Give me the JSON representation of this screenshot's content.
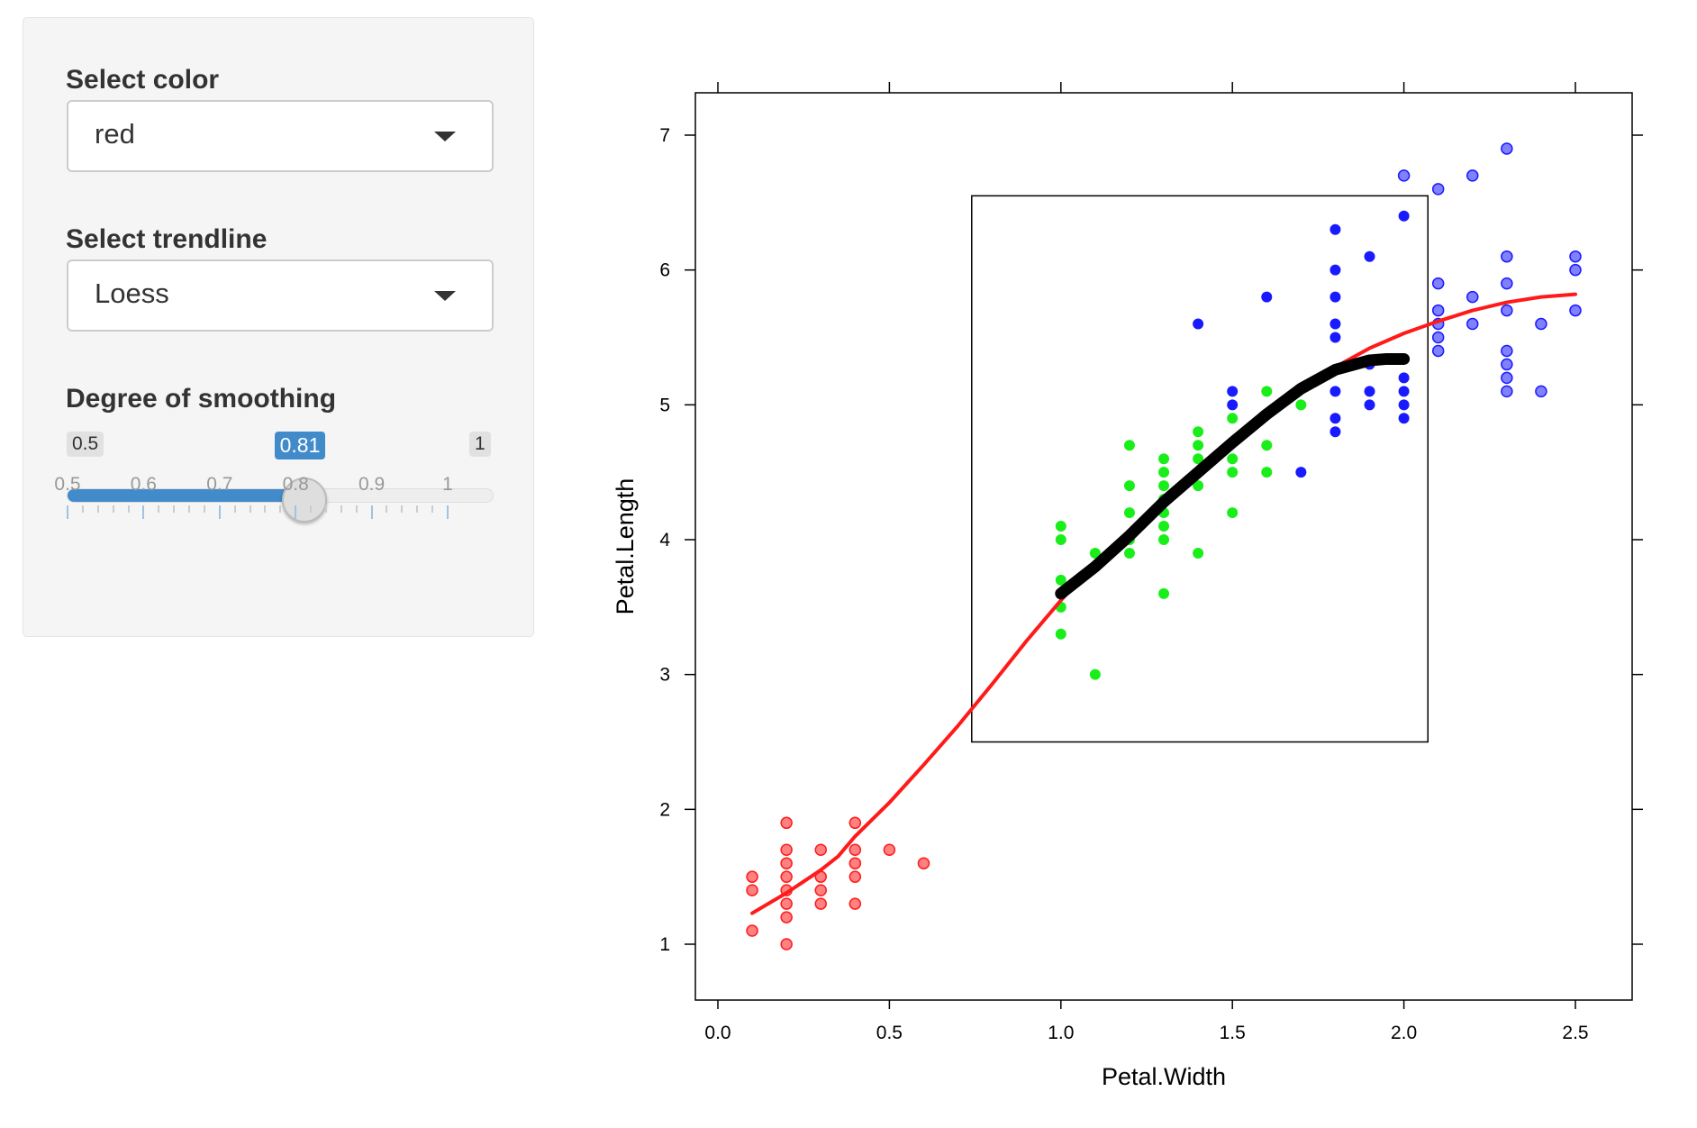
{
  "sidebar": {
    "color_label": "Select color",
    "color_value": "red",
    "trendline_label": "Select trendline",
    "trendline_value": "Loess",
    "smoothing_label": "Degree of smoothing",
    "smoothing": {
      "min": 0.5,
      "max": 1,
      "value": 0.81,
      "min_label": "0.5",
      "max_label": "1",
      "value_label": "0.81",
      "tick_labels": [
        "0.5",
        "0.6",
        "0.7",
        "0.8",
        "0.9",
        "1"
      ],
      "accent": "#428bca"
    }
  },
  "chart_data": {
    "type": "scatter",
    "xlabel": "Petal.Width",
    "ylabel": "Petal.Length",
    "xlim": [
      -0.07,
      2.66
    ],
    "ylim": [
      0.6,
      7.3
    ],
    "xticks": [
      "0.0",
      "0.5",
      "1.0",
      "1.5",
      "2.0",
      "2.5"
    ],
    "yticks": [
      "1",
      "2",
      "3",
      "4",
      "5",
      "6",
      "7"
    ],
    "grid": false,
    "selection_box": {
      "x": [
        0.74,
        2.07
      ],
      "y": [
        2.5,
        6.55
      ]
    },
    "series": [
      {
        "color": "#ff1a1a",
        "points": [
          [
            0.1,
            1.5
          ],
          [
            0.1,
            1.4
          ],
          [
            0.1,
            1.1
          ],
          [
            0.2,
            1.9
          ],
          [
            0.2,
            1.7
          ],
          [
            0.2,
            1.6
          ],
          [
            0.2,
            1.5
          ],
          [
            0.2,
            1.4
          ],
          [
            0.2,
            1.3
          ],
          [
            0.2,
            1.2
          ],
          [
            0.2,
            1.0
          ],
          [
            0.3,
            1.7
          ],
          [
            0.3,
            1.5
          ],
          [
            0.3,
            1.4
          ],
          [
            0.3,
            1.3
          ],
          [
            0.4,
            1.9
          ],
          [
            0.4,
            1.7
          ],
          [
            0.4,
            1.6
          ],
          [
            0.4,
            1.5
          ],
          [
            0.4,
            1.3
          ],
          [
            0.5,
            1.7
          ],
          [
            0.6,
            1.6
          ]
        ]
      },
      {
        "color": "#1aee1a",
        "points": [
          [
            1.0,
            4.1
          ],
          [
            1.0,
            4.0
          ],
          [
            1.0,
            3.7
          ],
          [
            1.0,
            3.5
          ],
          [
            1.0,
            3.3
          ],
          [
            1.1,
            3.9
          ],
          [
            1.1,
            3.8
          ],
          [
            1.1,
            3.0
          ],
          [
            1.2,
            4.7
          ],
          [
            1.2,
            4.4
          ],
          [
            1.2,
            4.2
          ],
          [
            1.2,
            4.0
          ],
          [
            1.2,
            3.9
          ],
          [
            1.3,
            4.6
          ],
          [
            1.3,
            4.5
          ],
          [
            1.3,
            4.4
          ],
          [
            1.3,
            4.3
          ],
          [
            1.3,
            4.2
          ],
          [
            1.3,
            4.1
          ],
          [
            1.3,
            4.0
          ],
          [
            1.3,
            3.6
          ],
          [
            1.4,
            4.8
          ],
          [
            1.4,
            4.7
          ],
          [
            1.4,
            4.6
          ],
          [
            1.4,
            4.4
          ],
          [
            1.4,
            3.9
          ],
          [
            1.5,
            4.9
          ],
          [
            1.5,
            4.6
          ],
          [
            1.5,
            4.5
          ],
          [
            1.5,
            4.2
          ],
          [
            1.6,
            5.1
          ],
          [
            1.6,
            4.7
          ],
          [
            1.6,
            4.5
          ],
          [
            1.7,
            5.0
          ]
        ]
      },
      {
        "color": "#1a1aff",
        "points": [
          [
            1.4,
            5.6
          ],
          [
            1.5,
            5.1
          ],
          [
            1.5,
            5.0
          ],
          [
            1.6,
            5.8
          ],
          [
            1.7,
            4.5
          ],
          [
            1.8,
            6.3
          ],
          [
            1.8,
            6.0
          ],
          [
            1.8,
            5.8
          ],
          [
            1.8,
            5.6
          ],
          [
            1.8,
            5.5
          ],
          [
            1.8,
            5.1
          ],
          [
            1.8,
            4.9
          ],
          [
            1.8,
            4.8
          ],
          [
            1.9,
            6.1
          ],
          [
            1.9,
            5.3
          ],
          [
            1.9,
            5.1
          ],
          [
            1.9,
            5.0
          ],
          [
            2.0,
            6.7
          ],
          [
            2.0,
            6.4
          ],
          [
            2.0,
            5.2
          ],
          [
            2.0,
            5.1
          ],
          [
            2.0,
            5.0
          ],
          [
            2.0,
            4.9
          ],
          [
            2.1,
            6.6
          ],
          [
            2.1,
            5.9
          ],
          [
            2.1,
            5.7
          ],
          [
            2.1,
            5.6
          ],
          [
            2.1,
            5.5
          ],
          [
            2.1,
            5.4
          ],
          [
            2.2,
            6.7
          ],
          [
            2.2,
            5.8
          ],
          [
            2.2,
            5.6
          ],
          [
            2.3,
            6.9
          ],
          [
            2.3,
            6.1
          ],
          [
            2.3,
            5.9
          ],
          [
            2.3,
            5.7
          ],
          [
            2.3,
            5.4
          ],
          [
            2.3,
            5.3
          ],
          [
            2.3,
            5.2
          ],
          [
            2.3,
            5.1
          ],
          [
            2.4,
            5.6
          ],
          [
            2.4,
            5.1
          ],
          [
            2.5,
            6.1
          ],
          [
            2.5,
            6.0
          ],
          [
            2.5,
            5.7
          ]
        ]
      }
    ],
    "trendlines": [
      {
        "color": "#ff1a1a",
        "points": [
          [
            0.1,
            1.23
          ],
          [
            0.2,
            1.38
          ],
          [
            0.3,
            1.55
          ],
          [
            0.35,
            1.65
          ],
          [
            0.4,
            1.8
          ],
          [
            0.5,
            2.05
          ],
          [
            0.6,
            2.33
          ],
          [
            0.7,
            2.62
          ],
          [
            0.8,
            2.93
          ],
          [
            0.9,
            3.25
          ],
          [
            1.0,
            3.55
          ],
          [
            1.1,
            3.83
          ],
          [
            1.2,
            4.05
          ],
          [
            1.3,
            4.3
          ],
          [
            1.4,
            4.52
          ],
          [
            1.5,
            4.72
          ],
          [
            1.6,
            4.93
          ],
          [
            1.7,
            5.12
          ],
          [
            1.8,
            5.28
          ],
          [
            1.9,
            5.42
          ],
          [
            2.0,
            5.53
          ],
          [
            2.1,
            5.62
          ],
          [
            2.2,
            5.7
          ],
          [
            2.3,
            5.76
          ],
          [
            2.4,
            5.8
          ],
          [
            2.5,
            5.82
          ]
        ]
      },
      {
        "color": "#000000",
        "points": [
          [
            1.0,
            3.6
          ],
          [
            1.1,
            3.8
          ],
          [
            1.2,
            4.03
          ],
          [
            1.3,
            4.28
          ],
          [
            1.4,
            4.5
          ],
          [
            1.5,
            4.72
          ],
          [
            1.6,
            4.93
          ],
          [
            1.7,
            5.12
          ],
          [
            1.8,
            5.26
          ],
          [
            1.9,
            5.33
          ],
          [
            1.95,
            5.34
          ],
          [
            2.0,
            5.34
          ]
        ]
      }
    ]
  }
}
